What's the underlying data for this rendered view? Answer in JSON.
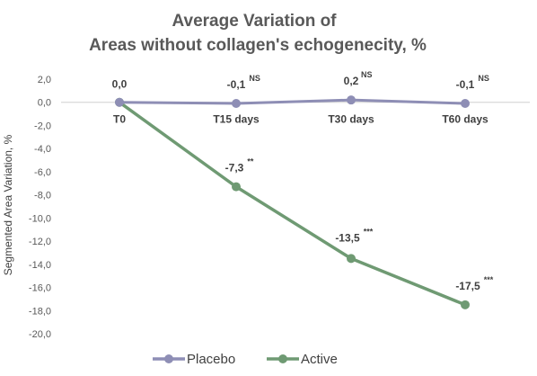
{
  "chart_data": {
    "type": "line",
    "title_line1": "Average Variation of",
    "title_line2": "Areas without collagen's echogenecity, %",
    "ylabel": "Segmented Area Variation, %",
    "xlabel": "",
    "categories": [
      "T0",
      "T15 days",
      "T30 days",
      "T60 days"
    ],
    "ylim": [
      -20,
      2
    ],
    "ytick_labels": [
      "2,0",
      "0,0",
      "-2,0",
      "-4,0",
      "-6,0",
      "-8,0",
      "-10,0",
      "-12,0",
      "-14,0",
      "-16,0",
      "-18,0",
      "-20,0"
    ],
    "grid": false,
    "legend_position": "bottom",
    "series": [
      {
        "name": "Placebo",
        "color": "#8e8eb5",
        "values": [
          0.0,
          -0.1,
          0.2,
          -0.1
        ],
        "labels": [
          "",
          "-0,1",
          "0,2",
          "-0,1"
        ],
        "significance": [
          "",
          "NS",
          "NS",
          "NS"
        ]
      },
      {
        "name": "Active",
        "color": "#6f9a73",
        "values": [
          0.0,
          -7.3,
          -13.5,
          -17.5
        ],
        "labels": [
          "0,0",
          "-7,3",
          "-13,5",
          "-17,5"
        ],
        "significance": [
          "",
          "**",
          "***",
          "***"
        ]
      }
    ]
  }
}
